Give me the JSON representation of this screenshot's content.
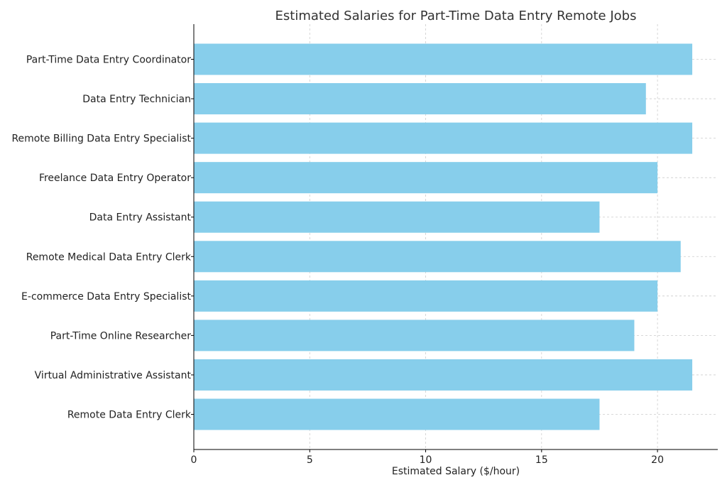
{
  "chart_data": {
    "type": "bar",
    "orientation": "horizontal",
    "title": "Estimated Salaries for Part-Time Data Entry Remote Jobs",
    "xlabel": "Estimated Salary ($/hour)",
    "ylabel": "",
    "xlim": [
      0,
      22.6
    ],
    "xticks": [
      0,
      5,
      10,
      15,
      20
    ],
    "grid": true,
    "bar_color": "#87CEEB",
    "categories": [
      "Part-Time Data Entry Coordinator",
      "Data Entry Technician",
      "Remote Billing Data Entry Specialist",
      "Freelance Data Entry Operator",
      "Data Entry Assistant",
      "Remote Medical Data Entry Clerk",
      "E-commerce Data Entry Specialist",
      "Part-Time Online Researcher",
      "Virtual Administrative Assistant",
      "Remote Data Entry Clerk"
    ],
    "values": [
      21.5,
      19.5,
      21.5,
      20,
      17.5,
      21,
      20,
      19,
      21.5,
      17.5
    ]
  }
}
